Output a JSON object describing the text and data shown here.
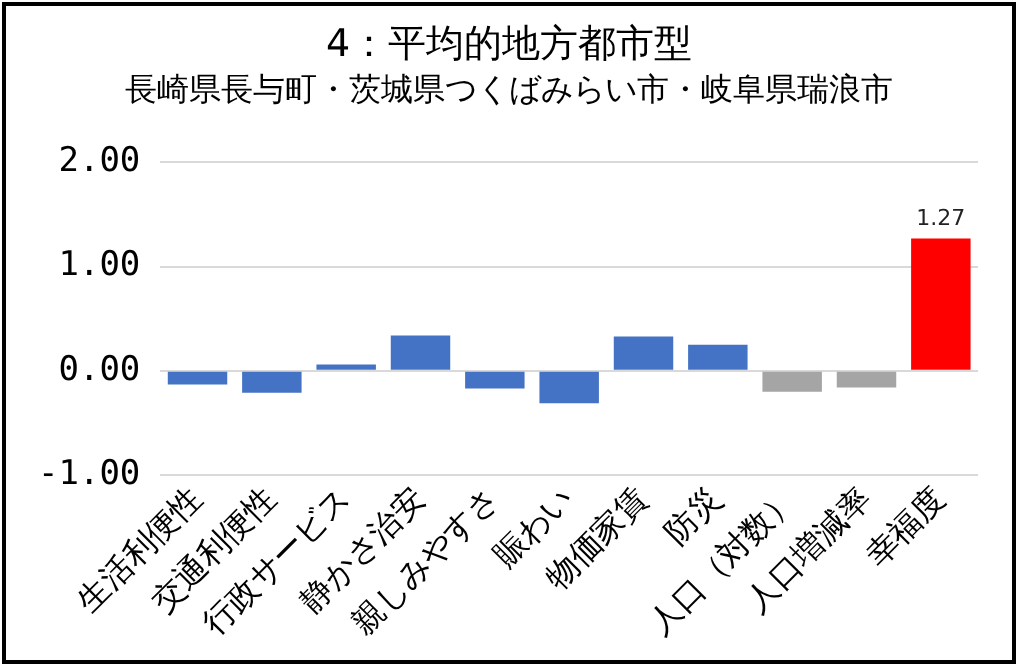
{
  "chart_data": {
    "type": "bar",
    "title": "4：平均的地方都市型",
    "subtitle": "長崎県長与町・茨城県つくばみらい市・岐阜県瑞浪市",
    "categories": [
      "生活利便性",
      "交通利便性",
      "行政サービス",
      "静かさ治安",
      "親しみやすさ",
      "賑わい",
      "物価家賃",
      "防災",
      "人口（対数）",
      "人口増減率",
      "幸福度"
    ],
    "values": [
      -0.13,
      -0.21,
      0.06,
      0.34,
      -0.17,
      -0.31,
      0.33,
      0.25,
      -0.2,
      -0.16,
      1.27
    ],
    "colors": [
      "#4472c4",
      "#4472c4",
      "#4472c4",
      "#4472c4",
      "#4472c4",
      "#4472c4",
      "#4472c4",
      "#4472c4",
      "#a5a5a5",
      "#a5a5a5",
      "#ff0000"
    ],
    "value_labels": [
      null,
      null,
      null,
      null,
      null,
      null,
      null,
      null,
      null,
      null,
      "1.27"
    ],
    "ylim": [
      -1,
      2
    ],
    "yticks": [
      {
        "value": -1,
        "label": "-1.00"
      },
      {
        "value": 0,
        "label": "0.00"
      },
      {
        "value": 1,
        "label": "1.00"
      },
      {
        "value": 2,
        "label": "2.00"
      }
    ],
    "grid": "y",
    "legend": false
  }
}
